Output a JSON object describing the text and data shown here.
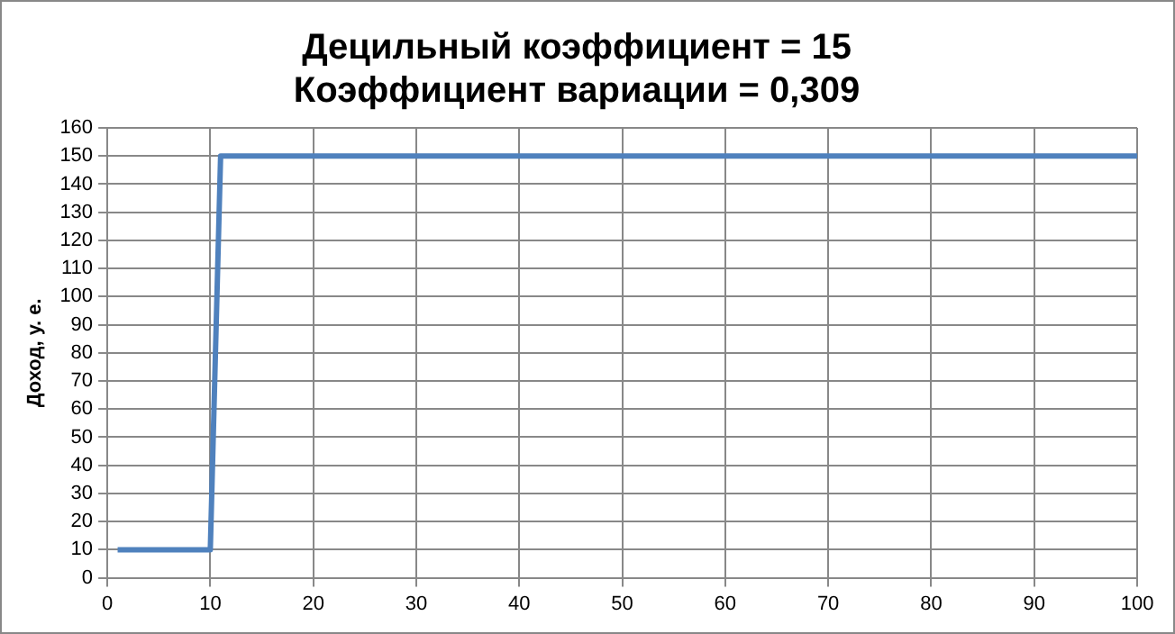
{
  "chart_data": {
    "type": "line",
    "title": [
      "Децильный коэффициент = 15",
      "Коэффициент вариации = 0,309"
    ],
    "ylabel": "Доход, у. е.",
    "x": [
      1,
      10,
      11,
      100
    ],
    "series": [
      {
        "color": "#4f81bd",
        "values": [
          10,
          10,
          150,
          150
        ]
      }
    ],
    "xlim": [
      0,
      100
    ],
    "xticks": [
      0,
      10,
      20,
      30,
      40,
      50,
      60,
      70,
      80,
      90,
      100
    ],
    "ylim": [
      0,
      160
    ],
    "yticks": [
      0,
      10,
      20,
      30,
      40,
      50,
      60,
      70,
      80,
      90,
      100,
      110,
      120,
      130,
      140,
      150,
      160
    ],
    "grid": true,
    "legend": false,
    "marker": "none",
    "line_style": "solid"
  }
}
